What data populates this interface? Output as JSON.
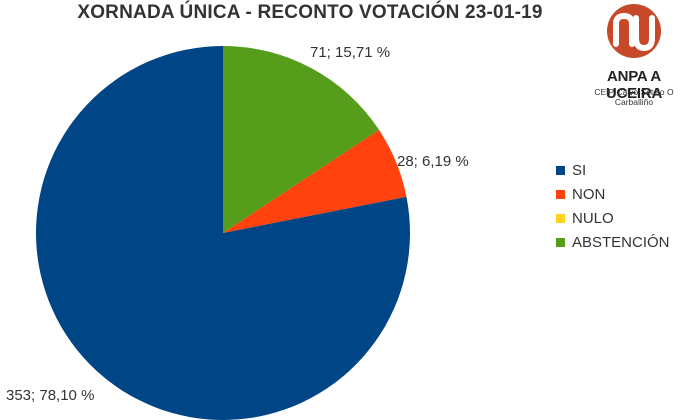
{
  "chart_data": {
    "type": "pie",
    "title": "XORNADA ÚNICA - RECONTO VOTACIÓN 23-01-19",
    "categories": [
      "SI",
      "NON",
      "NULO",
      "ABSTENCIÓN"
    ],
    "values": [
      353,
      28,
      0,
      71
    ],
    "percentages": [
      "78,10 %",
      "6,19 %",
      "0,00 %",
      "15,71 %"
    ],
    "data_labels": [
      "353; 78,10 %",
      "28; 6,19 %",
      "",
      "71; 15,71 %"
    ],
    "colors": [
      "#004586",
      "#ff420e",
      "#ffd320",
      "#579d1c"
    ],
    "legend_placement": "right"
  },
  "logo": {
    "name": "ANPA A UCEIRA",
    "subtitle": "CEIP Calvo Sotelo  O Carballiño",
    "mark": "nu",
    "color": "#c8492a"
  }
}
